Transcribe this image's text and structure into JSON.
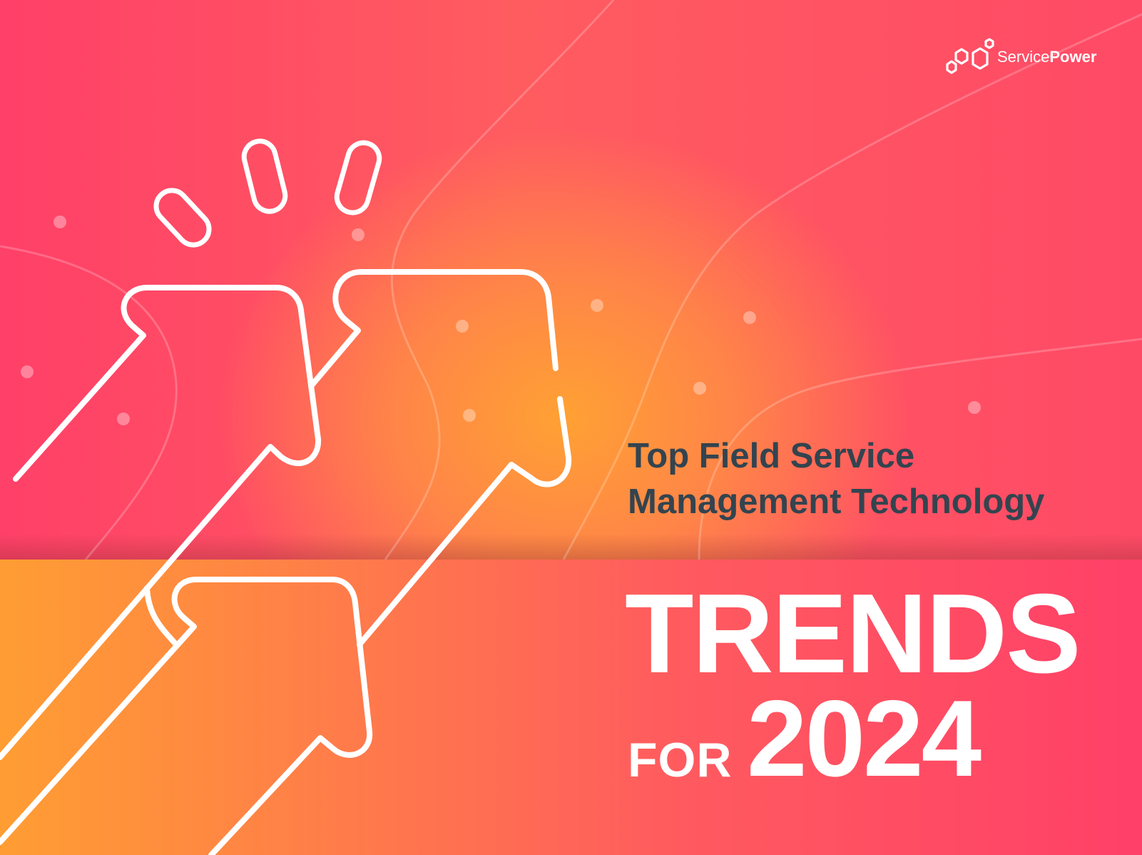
{
  "brand": {
    "name_regular": "Service",
    "name_bold": "Power"
  },
  "cover": {
    "subtitle_line1": "Top Field Service",
    "subtitle_line2": "Management Technology",
    "title_main": "TRENDS",
    "title_for": "FOR",
    "title_year": "2024"
  },
  "colors": {
    "pink": "#ff4068",
    "orange": "#ffa133",
    "subtitle_text": "#33444f",
    "title_text": "#ffffff"
  },
  "icons": [
    "logo-hexagon-icon",
    "arrow-icon",
    "spark-dash-icon",
    "decorative-dot-icon"
  ]
}
